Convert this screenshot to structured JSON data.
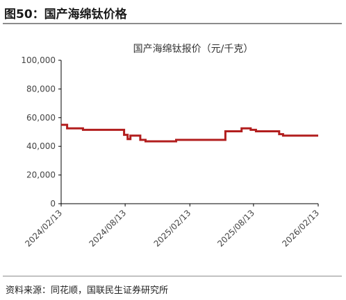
{
  "figure": {
    "title": "图50：国产海绵钛价格",
    "source": "资料来源：同花顺，国联民生证券研究所"
  },
  "colors": {
    "series": "#b21e1e",
    "axis": "#000000",
    "rule": "#8c8c8c"
  },
  "chart_data": {
    "type": "line",
    "title": "国产海绵钛报价（元/千克）",
    "xlabel": "",
    "ylabel": "",
    "grid": false,
    "legend": "none",
    "ylim": [
      0,
      100000
    ],
    "yticks": [
      0,
      20000,
      40000,
      60000,
      80000,
      100000
    ],
    "ytick_labels": [
      "0",
      "20,000",
      "40,000",
      "60,000",
      "80,000",
      "100,000"
    ],
    "xlim": [
      "2024-02-13",
      "2026-02-13"
    ],
    "xticks": [
      "2024-02-13",
      "2024-08-13",
      "2025-02-13",
      "2025-08-13",
      "2026-02-13"
    ],
    "xtick_labels": [
      "2024/02/13",
      "2024/08/13",
      "2025/02/13",
      "2025/08/13",
      "2026/02/13"
    ],
    "series": [
      {
        "name": "",
        "points": [
          [
            "2024-02-13",
            55000
          ],
          [
            "2024-03-01",
            55000
          ],
          [
            "2024-03-01",
            52500
          ],
          [
            "2024-04-15",
            52500
          ],
          [
            "2024-04-15",
            51500
          ],
          [
            "2024-08-10",
            51500
          ],
          [
            "2024-08-10",
            48000
          ],
          [
            "2024-08-20",
            48000
          ],
          [
            "2024-08-20",
            45000
          ],
          [
            "2024-08-28",
            45000
          ],
          [
            "2024-08-28",
            47500
          ],
          [
            "2024-09-25",
            47500
          ],
          [
            "2024-09-25",
            44500
          ],
          [
            "2024-10-10",
            44500
          ],
          [
            "2024-10-10",
            43500
          ],
          [
            "2025-01-05",
            43500
          ],
          [
            "2025-01-05",
            44500
          ],
          [
            "2025-05-25",
            44500
          ],
          [
            "2025-05-25",
            50500
          ],
          [
            "2025-07-10",
            50500
          ],
          [
            "2025-07-10",
            52500
          ],
          [
            "2025-08-05",
            52500
          ],
          [
            "2025-08-05",
            51500
          ],
          [
            "2025-08-20",
            51500
          ],
          [
            "2025-08-20",
            50500
          ],
          [
            "2025-10-25",
            50500
          ],
          [
            "2025-10-25",
            48500
          ],
          [
            "2025-11-05",
            48500
          ],
          [
            "2025-11-05",
            47500
          ],
          [
            "2026-02-13",
            47500
          ]
        ]
      }
    ]
  }
}
